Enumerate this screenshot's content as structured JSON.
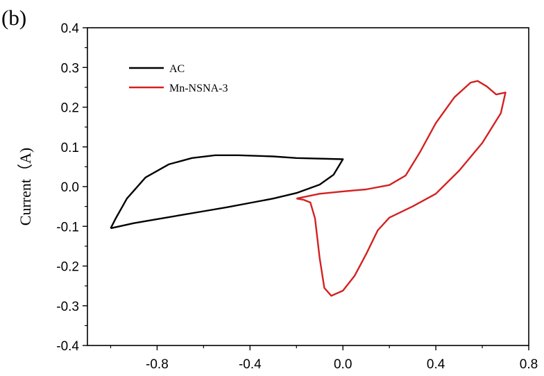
{
  "panel_label": "(b)",
  "chart_data": {
    "type": "line",
    "xlabel": "",
    "ylabel": "Current（A)",
    "xlim": [
      -1.1,
      0.8
    ],
    "ylim": [
      -0.4,
      0.4
    ],
    "x_ticks": [
      -0.8,
      -0.4,
      0.0,
      0.4,
      0.8
    ],
    "x_tick_labels": [
      "-0.8",
      "-0.4",
      "0.0",
      "0.4",
      "0.8"
    ],
    "y_ticks": [
      0.4,
      0.3,
      0.2,
      0.1,
      0.0,
      -0.1,
      -0.2,
      -0.3,
      -0.4
    ],
    "y_tick_labels": [
      "0.4",
      "0.3",
      "0.2",
      "0.1",
      "0.0",
      "-0.1",
      "-0.2",
      "-0.3",
      "-0.4"
    ],
    "grid": false,
    "legend_position": "top-left",
    "series": [
      {
        "name": "AC",
        "color": "#000000",
        "points": [
          [
            -1.0,
            -0.105
          ],
          [
            -0.9,
            -0.092
          ],
          [
            -0.8,
            -0.082
          ],
          [
            -0.7,
            -0.072
          ],
          [
            -0.6,
            -0.062
          ],
          [
            -0.5,
            -0.052
          ],
          [
            -0.4,
            -0.041
          ],
          [
            -0.3,
            -0.03
          ],
          [
            -0.2,
            -0.016
          ],
          [
            -0.1,
            0.005
          ],
          [
            -0.04,
            0.03
          ],
          [
            0.0,
            0.069
          ],
          [
            -0.2,
            0.072
          ],
          [
            -0.3,
            0.076
          ],
          [
            -0.45,
            0.079
          ],
          [
            -0.55,
            0.079
          ],
          [
            -0.65,
            0.072
          ],
          [
            -0.75,
            0.056
          ],
          [
            -0.85,
            0.023
          ],
          [
            -0.93,
            -0.03
          ],
          [
            -0.98,
            -0.082
          ],
          [
            -1.0,
            -0.105
          ]
        ]
      },
      {
        "name": "Mn-NSNA-3",
        "color": "#d42020",
        "points": [
          [
            -0.2,
            -0.03
          ],
          [
            -0.1,
            -0.018
          ],
          [
            0.0,
            -0.012
          ],
          [
            0.1,
            -0.007
          ],
          [
            0.2,
            0.004
          ],
          [
            0.27,
            0.028
          ],
          [
            0.33,
            0.085
          ],
          [
            0.4,
            0.16
          ],
          [
            0.48,
            0.225
          ],
          [
            0.55,
            0.262
          ],
          [
            0.58,
            0.266
          ],
          [
            0.62,
            0.252
          ],
          [
            0.66,
            0.232
          ],
          [
            0.7,
            0.237
          ],
          [
            0.68,
            0.185
          ],
          [
            0.6,
            0.11
          ],
          [
            0.5,
            0.04
          ],
          [
            0.4,
            -0.018
          ],
          [
            0.3,
            -0.05
          ],
          [
            0.2,
            -0.078
          ],
          [
            0.15,
            -0.11
          ],
          [
            0.1,
            -0.17
          ],
          [
            0.05,
            -0.225
          ],
          [
            0.0,
            -0.262
          ],
          [
            -0.05,
            -0.275
          ],
          [
            -0.08,
            -0.255
          ],
          [
            -0.1,
            -0.18
          ],
          [
            -0.12,
            -0.08
          ],
          [
            -0.14,
            -0.04
          ],
          [
            -0.17,
            -0.033
          ],
          [
            -0.2,
            -0.03
          ]
        ]
      }
    ]
  }
}
